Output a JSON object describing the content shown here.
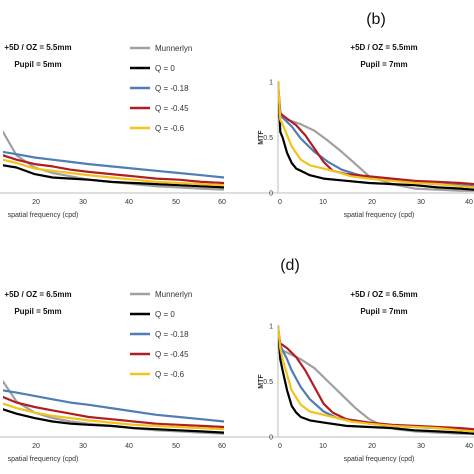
{
  "colors": {
    "Munnerlyn": "#a0a0a0",
    "Q = 0": "#000000",
    "Q = -0.18": "#4f7db6",
    "Q = -0.45": "#b01e23",
    "Q = -0.6": "#f2c31c"
  },
  "legend": {
    "items": [
      "Munnerlyn",
      "Q = 0",
      "Q = -0.18",
      "Q = -0.45",
      "Q = -0.6"
    ]
  },
  "chart_data": [
    {
      "id": "a",
      "type": "line",
      "panel_label": "",
      "condition": [
        "+5D / OZ = 5.5mm",
        "Pupil = 5mm"
      ],
      "xlabel": "spatial frequency (cpd)",
      "ylabel": "",
      "xticks": [
        "20",
        "30",
        "40",
        "50",
        "60"
      ],
      "xlim": [
        11,
        60
      ],
      "ylim": [
        0,
        1
      ],
      "show_legend": true,
      "series": [
        {
          "name": "Munnerlyn",
          "x": [
            11,
            14,
            18,
            22,
            26,
            30,
            35,
            40,
            45,
            50,
            55,
            60
          ],
          "y": [
            0.55,
            0.34,
            0.23,
            0.18,
            0.15,
            0.12,
            0.1,
            0.08,
            0.06,
            0.05,
            0.04,
            0.03
          ]
        },
        {
          "name": "Q = 0",
          "x": [
            11,
            14,
            18,
            22,
            26,
            30,
            35,
            40,
            45,
            50,
            55,
            60
          ],
          "y": [
            0.25,
            0.23,
            0.17,
            0.14,
            0.13,
            0.12,
            0.1,
            0.09,
            0.08,
            0.07,
            0.06,
            0.05
          ]
        },
        {
          "name": "Q = -0.18",
          "x": [
            11,
            14,
            18,
            22,
            26,
            30,
            35,
            40,
            45,
            50,
            55,
            60
          ],
          "y": [
            0.37,
            0.35,
            0.32,
            0.3,
            0.28,
            0.26,
            0.24,
            0.22,
            0.2,
            0.18,
            0.16,
            0.14
          ]
        },
        {
          "name": "Q = -0.45",
          "x": [
            11,
            14,
            18,
            22,
            26,
            30,
            35,
            40,
            45,
            50,
            55,
            60
          ],
          "y": [
            0.34,
            0.3,
            0.26,
            0.24,
            0.21,
            0.19,
            0.17,
            0.15,
            0.13,
            0.12,
            0.1,
            0.09
          ]
        },
        {
          "name": "Q = -0.6",
          "x": [
            11,
            14,
            18,
            22,
            26,
            30,
            35,
            40,
            45,
            50,
            55,
            60
          ],
          "y": [
            0.3,
            0.27,
            0.22,
            0.2,
            0.18,
            0.16,
            0.14,
            0.12,
            0.1,
            0.09,
            0.08,
            0.07
          ]
        }
      ]
    },
    {
      "id": "b",
      "type": "line",
      "panel_label": "(b)",
      "condition": [
        "+5D / OZ = 5.5mm",
        "Pupil = 7mm"
      ],
      "xlabel": "spatial frequency (cpd)",
      "ylabel": "MTF",
      "xticks": [
        "0",
        "10",
        "20",
        "30",
        "40"
      ],
      "yticks": [
        "0",
        "0.5",
        "1"
      ],
      "xlim": [
        0,
        43
      ],
      "ylim": [
        0,
        1
      ],
      "show_legend": false,
      "series": [
        {
          "name": "Munnerlyn",
          "x": [
            0,
            2,
            5,
            8,
            11,
            14,
            17,
            20,
            25,
            30,
            35,
            40,
            43
          ],
          "y": [
            0.7,
            0.66,
            0.62,
            0.56,
            0.47,
            0.37,
            0.26,
            0.15,
            0.08,
            0.04,
            0.03,
            0.02,
            0.02
          ]
        },
        {
          "name": "Q = 0",
          "x": [
            0,
            0.5,
            1,
            2,
            3,
            4,
            5,
            7,
            10,
            15,
            20,
            25,
            30,
            35,
            40,
            43
          ],
          "y": [
            1,
            0.55,
            0.5,
            0.36,
            0.27,
            0.22,
            0.2,
            0.16,
            0.13,
            0.11,
            0.09,
            0.08,
            0.07,
            0.05,
            0.04,
            0.03
          ]
        },
        {
          "name": "Q = -0.18",
          "x": [
            0,
            0.5,
            1,
            2,
            3,
            5,
            8,
            11,
            14,
            17,
            20,
            25,
            30,
            35,
            40,
            43
          ],
          "y": [
            1,
            0.72,
            0.68,
            0.64,
            0.6,
            0.49,
            0.37,
            0.28,
            0.21,
            0.17,
            0.14,
            0.12,
            0.1,
            0.08,
            0.07,
            0.06
          ]
        },
        {
          "name": "Q = -0.45",
          "x": [
            0,
            0.5,
            1,
            2,
            4,
            6,
            8,
            10,
            12,
            15,
            20,
            25,
            30,
            35,
            40,
            43
          ],
          "y": [
            0.95,
            0.72,
            0.7,
            0.67,
            0.61,
            0.52,
            0.4,
            0.28,
            0.2,
            0.17,
            0.15,
            0.13,
            0.11,
            0.1,
            0.09,
            0.08
          ]
        },
        {
          "name": "Q = -0.6",
          "x": [
            0,
            0.5,
            1,
            2,
            3,
            5,
            7,
            10,
            13,
            16,
            20,
            25,
            30,
            35,
            40,
            43
          ],
          "y": [
            1,
            0.66,
            0.62,
            0.52,
            0.42,
            0.3,
            0.25,
            0.22,
            0.19,
            0.15,
            0.13,
            0.11,
            0.09,
            0.08,
            0.06,
            0.05
          ]
        }
      ]
    },
    {
      "id": "c",
      "type": "line",
      "panel_label": "",
      "condition": [
        "+5D / OZ = 6.5mm",
        "Pupil = 5mm"
      ],
      "xlabel": "spatial frequency (cpd)",
      "ylabel": "",
      "xticks": [
        "20",
        "30",
        "40",
        "50",
        "60"
      ],
      "xlim": [
        11,
        60
      ],
      "ylim": [
        0,
        1
      ],
      "show_legend": true,
      "series": [
        {
          "name": "Munnerlyn",
          "x": [
            11,
            14,
            18,
            22,
            26,
            30,
            35,
            40,
            45,
            50,
            55,
            60
          ],
          "y": [
            0.5,
            0.32,
            0.22,
            0.17,
            0.14,
            0.12,
            0.1,
            0.08,
            0.06,
            0.05,
            0.04,
            0.03
          ]
        },
        {
          "name": "Q = 0",
          "x": [
            11,
            14,
            18,
            22,
            26,
            30,
            35,
            40,
            45,
            50,
            55,
            60
          ],
          "y": [
            0.25,
            0.21,
            0.17,
            0.14,
            0.12,
            0.11,
            0.1,
            0.08,
            0.07,
            0.06,
            0.05,
            0.04
          ]
        },
        {
          "name": "Q = -0.18",
          "x": [
            11,
            14,
            18,
            22,
            26,
            30,
            35,
            40,
            45,
            50,
            55,
            60
          ],
          "y": [
            0.42,
            0.4,
            0.37,
            0.34,
            0.31,
            0.29,
            0.26,
            0.23,
            0.2,
            0.18,
            0.16,
            0.14
          ]
        },
        {
          "name": "Q = -0.45",
          "x": [
            11,
            14,
            18,
            22,
            26,
            30,
            35,
            40,
            45,
            50,
            55,
            60
          ],
          "y": [
            0.36,
            0.31,
            0.27,
            0.24,
            0.21,
            0.18,
            0.16,
            0.14,
            0.12,
            0.11,
            0.1,
            0.09
          ]
        },
        {
          "name": "Q = -0.6",
          "x": [
            11,
            14,
            18,
            22,
            26,
            30,
            35,
            40,
            45,
            50,
            55,
            60
          ],
          "y": [
            0.3,
            0.26,
            0.22,
            0.19,
            0.17,
            0.15,
            0.13,
            0.11,
            0.1,
            0.09,
            0.08,
            0.07
          ]
        }
      ]
    },
    {
      "id": "d",
      "type": "line",
      "panel_label": "(d)",
      "condition": [
        "+5D / OZ = 6.5mm",
        "Pupil = 7mm"
      ],
      "xlabel": "spatial frequency (cpd)",
      "ylabel": "MTF",
      "xticks": [
        "0",
        "10",
        "20",
        "30",
        "40"
      ],
      "yticks": [
        "0",
        "0.5",
        "1"
      ],
      "xlim": [
        0,
        43
      ],
      "ylim": [
        0,
        1
      ],
      "show_legend": false,
      "series": [
        {
          "name": "Munnerlyn",
          "x": [
            0,
            2,
            5,
            8,
            11,
            14,
            17,
            20,
            23,
            26,
            30,
            35,
            40,
            43
          ],
          "y": [
            0.8,
            0.76,
            0.7,
            0.62,
            0.5,
            0.38,
            0.26,
            0.16,
            0.1,
            0.07,
            0.05,
            0.04,
            0.03,
            0.03
          ]
        },
        {
          "name": "Q = 0",
          "x": [
            0,
            0.5,
            1,
            2,
            3,
            4,
            5,
            7,
            10,
            15,
            20,
            25,
            30,
            35,
            40,
            43
          ],
          "y": [
            1,
            0.7,
            0.6,
            0.42,
            0.28,
            0.22,
            0.18,
            0.15,
            0.13,
            0.1,
            0.09,
            0.08,
            0.06,
            0.05,
            0.04,
            0.03
          ]
        },
        {
          "name": "Q = -0.18",
          "x": [
            0,
            0.5,
            1,
            2,
            3,
            5,
            7,
            10,
            13,
            16,
            20,
            25,
            30,
            35,
            40,
            43
          ],
          "y": [
            1,
            0.83,
            0.78,
            0.7,
            0.6,
            0.45,
            0.34,
            0.23,
            0.17,
            0.15,
            0.12,
            0.1,
            0.09,
            0.08,
            0.07,
            0.06
          ]
        },
        {
          "name": "Q = -0.45",
          "x": [
            0,
            0.5,
            1,
            2,
            4,
            6,
            8,
            10,
            12,
            15,
            20,
            25,
            30,
            35,
            40,
            43
          ],
          "y": [
            0.95,
            0.84,
            0.83,
            0.8,
            0.72,
            0.6,
            0.45,
            0.3,
            0.22,
            0.16,
            0.13,
            0.11,
            0.1,
            0.09,
            0.08,
            0.07
          ]
        },
        {
          "name": "Q = -0.6",
          "x": [
            0,
            0.5,
            1,
            2,
            3,
            5,
            7,
            10,
            13,
            16,
            20,
            25,
            30,
            35,
            40,
            43
          ],
          "y": [
            1,
            0.8,
            0.7,
            0.56,
            0.42,
            0.29,
            0.23,
            0.2,
            0.17,
            0.14,
            0.12,
            0.1,
            0.09,
            0.08,
            0.06,
            0.05
          ]
        }
      ]
    }
  ]
}
